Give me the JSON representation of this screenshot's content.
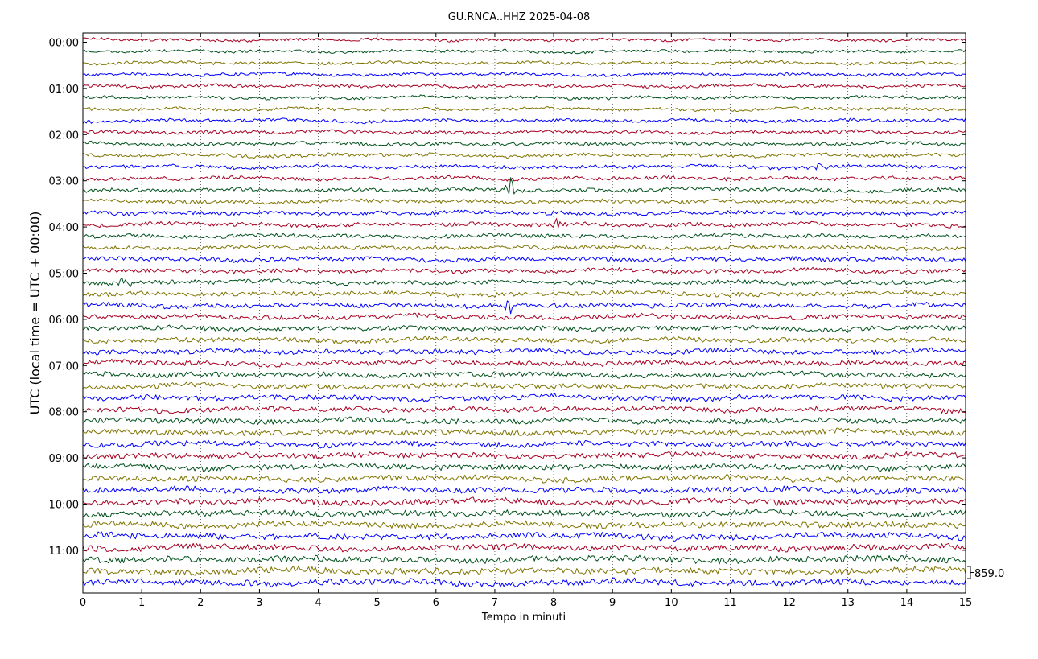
{
  "chart_data": {
    "type": "line",
    "title": "GU.RNCA..HHZ 2025-04-08",
    "xlabel": "Tempo in minuti",
    "ylabel": "UTC (local time = UTC + 00:00)",
    "xlim": [
      0,
      15
    ],
    "x_ticks": [
      "0",
      "1",
      "2",
      "3",
      "4",
      "5",
      "6",
      "7",
      "8",
      "9",
      "10",
      "11",
      "12",
      "13",
      "14",
      "15"
    ],
    "y_tick_labels": [
      "00:00",
      "01:00",
      "02:00",
      "03:00",
      "04:00",
      "05:00",
      "06:00",
      "07:00",
      "08:00",
      "09:00",
      "10:00",
      "11:00"
    ],
    "traces_per_hour": 4,
    "trace_count": 48,
    "trace_minutes": 15,
    "trace_colors": [
      "#a50021",
      "#00511b",
      "#7f7400",
      "#0000ff"
    ],
    "grid": "dotted vertical",
    "scale_label": "859.0",
    "events": [
      {
        "trace_start": "03:15",
        "minute": 7.25,
        "relative_amplitude": 3.0
      },
      {
        "trace_start": "05:15",
        "minute": 0.7,
        "relative_amplitude": 1.8
      },
      {
        "trace_start": "04:00",
        "minute": 8.05,
        "relative_amplitude": 1.6
      },
      {
        "trace_start": "05:45",
        "minute": 7.25,
        "relative_amplitude": 1.5
      },
      {
        "trace_start": "02:45",
        "minute": 12.5,
        "relative_amplitude": 1.3
      }
    ]
  }
}
